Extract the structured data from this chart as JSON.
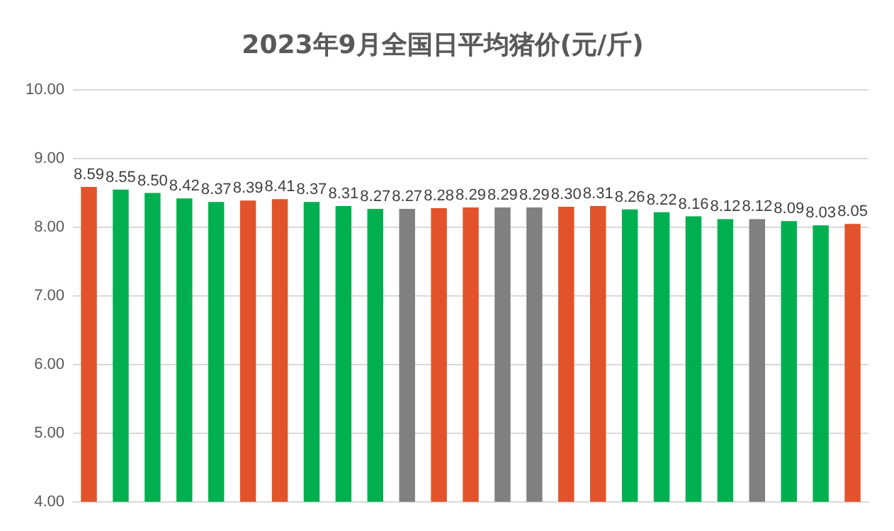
{
  "chart_data": {
    "type": "bar",
    "title": "2023年9月全国日平均猪价(元/斤)",
    "categories": [
      null,
      null,
      null,
      null,
      null,
      null,
      null,
      null,
      null,
      null,
      null,
      null,
      null,
      null,
      null,
      null,
      null,
      null,
      null,
      null,
      null,
      null,
      null,
      null,
      null
    ],
    "values": [
      8.59,
      8.55,
      8.5,
      8.42,
      8.37,
      8.39,
      8.41,
      8.37,
      8.31,
      8.27,
      8.27,
      8.28,
      8.29,
      8.29,
      8.29,
      8.3,
      8.31,
      8.26,
      8.22,
      8.16,
      8.12,
      8.12,
      8.09,
      8.03,
      8.05
    ],
    "value_labels": [
      "8.59",
      "8.55",
      "8.50",
      "8.42",
      "8.37",
      "8.39",
      "8.41",
      "8.37",
      "8.31",
      "8.27",
      "8.27",
      "8.28",
      "8.29",
      "8.29",
      "8.29",
      "8.30",
      "8.31",
      "8.26",
      "8.22",
      "8.16",
      "8.12",
      "8.12",
      "8.09",
      "8.03",
      "8.05"
    ],
    "colors": [
      "#e2532b",
      "#00b050",
      "#00b050",
      "#00b050",
      "#00b050",
      "#e2532b",
      "#e2532b",
      "#00b050",
      "#00b050",
      "#00b050",
      "#808080",
      "#e2532b",
      "#e2532b",
      "#808080",
      "#808080",
      "#e2532b",
      "#e2532b",
      "#00b050",
      "#00b050",
      "#00b050",
      "#00b050",
      "#808080",
      "#00b050",
      "#00b050",
      "#e2532b"
    ],
    "ylim": [
      4,
      10
    ],
    "yticks": [
      {
        "value": 4,
        "label": "4.00"
      },
      {
        "value": 5,
        "label": "5.00"
      },
      {
        "value": 6,
        "label": "6.00"
      },
      {
        "value": 7,
        "label": "7.00"
      },
      {
        "value": 8,
        "label": "8.00"
      },
      {
        "value": 9,
        "label": "9.00"
      },
      {
        "value": 10,
        "label": "10.00"
      }
    ],
    "grid": "y",
    "tick_labels": "y",
    "legend": false
  }
}
